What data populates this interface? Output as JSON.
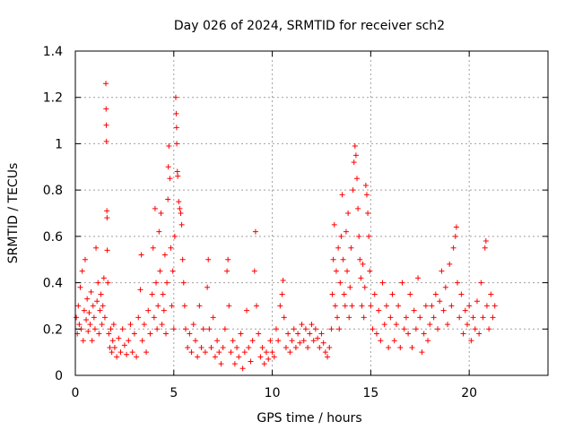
{
  "chart_data": {
    "type": "scatter",
    "title": "Day 026 of 2024, SRMTID for receiver sch2",
    "xlabel": "GPS time / hours",
    "ylabel": "SRMTID / TECUs",
    "xlim": [
      0,
      24
    ],
    "ylim": [
      0,
      1.4
    ],
    "x_ticks": [
      0,
      5,
      10,
      15,
      20
    ],
    "x_tick_labels": [
      "0",
      "5",
      "10",
      "15",
      "20"
    ],
    "y_ticks": [
      0,
      0.2,
      0.4,
      0.6,
      0.8,
      1.0,
      1.2,
      1.4
    ],
    "y_tick_labels": [
      "0",
      "0.2",
      "0.4",
      "0.6",
      "0.8",
      "1",
      "1.2",
      "1.4"
    ],
    "grid": true,
    "marker": "plus",
    "series": [
      {
        "name": "SRMTID",
        "color": "#ff0000",
        "points": [
          [
            0.05,
            0.25
          ],
          [
            0.1,
            0.18
          ],
          [
            0.15,
            0.3
          ],
          [
            0.2,
            0.22
          ],
          [
            0.25,
            0.38
          ],
          [
            0.3,
            0.2
          ],
          [
            0.35,
            0.45
          ],
          [
            0.4,
            0.15
          ],
          [
            0.45,
            0.28
          ],
          [
            0.5,
            0.5
          ],
          [
            0.55,
            0.24
          ],
          [
            0.6,
            0.33
          ],
          [
            0.65,
            0.19
          ],
          [
            0.7,
            0.27
          ],
          [
            0.75,
            0.22
          ],
          [
            0.8,
            0.36
          ],
          [
            0.85,
            0.15
          ],
          [
            0.9,
            0.3
          ],
          [
            0.95,
            0.25
          ],
          [
            1.0,
            0.2
          ],
          [
            1.05,
            0.55
          ],
          [
            1.1,
            0.32
          ],
          [
            1.15,
            0.4
          ],
          [
            1.2,
            0.18
          ],
          [
            1.25,
            0.28
          ],
          [
            1.3,
            0.35
          ],
          [
            1.35,
            0.22
          ],
          [
            1.4,
            0.3
          ],
          [
            1.45,
            0.42
          ],
          [
            1.5,
            0.25
          ],
          [
            1.55,
            1.26
          ],
          [
            1.56,
            1.15
          ],
          [
            1.57,
            1.08
          ],
          [
            1.58,
            1.01
          ],
          [
            1.6,
            0.71
          ],
          [
            1.61,
            0.68
          ],
          [
            1.62,
            0.54
          ],
          [
            1.65,
            0.4
          ],
          [
            1.7,
            0.18
          ],
          [
            1.75,
            0.12
          ],
          [
            1.8,
            0.2
          ],
          [
            1.85,
            0.1
          ],
          [
            1.9,
            0.15
          ],
          [
            1.95,
            0.22
          ],
          [
            2.0,
            0.12
          ],
          [
            2.1,
            0.08
          ],
          [
            2.2,
            0.16
          ],
          [
            2.3,
            0.1
          ],
          [
            2.4,
            0.2
          ],
          [
            2.5,
            0.13
          ],
          [
            2.6,
            0.09
          ],
          [
            2.7,
            0.15
          ],
          [
            2.8,
            0.22
          ],
          [
            2.9,
            0.1
          ],
          [
            3.0,
            0.18
          ],
          [
            3.1,
            0.08
          ],
          [
            3.2,
            0.25
          ],
          [
            3.3,
            0.37
          ],
          [
            3.35,
            0.52
          ],
          [
            3.4,
            0.15
          ],
          [
            3.5,
            0.22
          ],
          [
            3.6,
            0.1
          ],
          [
            3.7,
            0.28
          ],
          [
            3.8,
            0.18
          ],
          [
            3.9,
            0.35
          ],
          [
            3.95,
            0.55
          ],
          [
            4.0,
            0.25
          ],
          [
            4.05,
            0.72
          ],
          [
            4.1,
            0.4
          ],
          [
            4.15,
            0.2
          ],
          [
            4.2,
            0.3
          ],
          [
            4.25,
            0.62
          ],
          [
            4.3,
            0.45
          ],
          [
            4.35,
            0.7
          ],
          [
            4.4,
            0.22
          ],
          [
            4.45,
            0.35
          ],
          [
            4.5,
            0.28
          ],
          [
            4.55,
            0.52
          ],
          [
            4.6,
            0.18
          ],
          [
            4.65,
            0.4
          ],
          [
            4.7,
            0.76
          ],
          [
            4.72,
            0.9
          ],
          [
            4.75,
            0.99
          ],
          [
            4.8,
            0.85
          ],
          [
            4.85,
            0.55
          ],
          [
            4.9,
            0.3
          ],
          [
            4.95,
            0.45
          ],
          [
            5.0,
            0.2
          ],
          [
            5.05,
            0.6
          ],
          [
            5.1,
            1.2
          ],
          [
            5.12,
            1.13
          ],
          [
            5.14,
            1.07
          ],
          [
            5.15,
            1.0
          ],
          [
            5.18,
            0.88
          ],
          [
            5.2,
            0.86
          ],
          [
            5.25,
            0.75
          ],
          [
            5.3,
            0.72
          ],
          [
            5.35,
            0.7
          ],
          [
            5.4,
            0.65
          ],
          [
            5.45,
            0.5
          ],
          [
            5.5,
            0.4
          ],
          [
            5.55,
            0.3
          ],
          [
            5.6,
            0.2
          ],
          [
            5.7,
            0.12
          ],
          [
            5.8,
            0.18
          ],
          [
            5.9,
            0.1
          ],
          [
            6.0,
            0.22
          ],
          [
            6.1,
            0.15
          ],
          [
            6.2,
            0.08
          ],
          [
            6.3,
            0.3
          ],
          [
            6.4,
            0.12
          ],
          [
            6.5,
            0.2
          ],
          [
            6.6,
            0.1
          ],
          [
            6.7,
            0.38
          ],
          [
            6.75,
            0.5
          ],
          [
            6.8,
            0.2
          ],
          [
            6.9,
            0.12
          ],
          [
            7.0,
            0.25
          ],
          [
            7.1,
            0.08
          ],
          [
            7.2,
            0.15
          ],
          [
            7.3,
            0.1
          ],
          [
            7.4,
            0.05
          ],
          [
            7.5,
            0.12
          ],
          [
            7.6,
            0.2
          ],
          [
            7.7,
            0.45
          ],
          [
            7.75,
            0.5
          ],
          [
            7.8,
            0.3
          ],
          [
            7.9,
            0.1
          ],
          [
            8.0,
            0.15
          ],
          [
            8.1,
            0.05
          ],
          [
            8.2,
            0.12
          ],
          [
            8.3,
            0.08
          ],
          [
            8.4,
            0.18
          ],
          [
            8.5,
            0.03
          ],
          [
            8.6,
            0.1
          ],
          [
            8.7,
            0.28
          ],
          [
            8.8,
            0.12
          ],
          [
            8.9,
            0.06
          ],
          [
            9.0,
            0.15
          ],
          [
            9.1,
            0.45
          ],
          [
            9.15,
            0.62
          ],
          [
            9.2,
            0.3
          ],
          [
            9.3,
            0.18
          ],
          [
            9.4,
            0.08
          ],
          [
            9.5,
            0.12
          ],
          [
            9.6,
            0.05
          ],
          [
            9.7,
            0.1
          ],
          [
            9.8,
            0.07
          ],
          [
            9.9,
            0.15
          ],
          [
            10.0,
            0.1
          ],
          [
            10.1,
            0.08
          ],
          [
            10.2,
            0.2
          ],
          [
            10.3,
            0.15
          ],
          [
            10.4,
            0.3
          ],
          [
            10.5,
            0.35
          ],
          [
            10.55,
            0.41
          ],
          [
            10.6,
            0.25
          ],
          [
            10.7,
            0.12
          ],
          [
            10.8,
            0.18
          ],
          [
            10.9,
            0.1
          ],
          [
            11.0,
            0.15
          ],
          [
            11.1,
            0.2
          ],
          [
            11.2,
            0.12
          ],
          [
            11.3,
            0.18
          ],
          [
            11.4,
            0.14
          ],
          [
            11.5,
            0.22
          ],
          [
            11.6,
            0.15
          ],
          [
            11.7,
            0.2
          ],
          [
            11.8,
            0.12
          ],
          [
            11.9,
            0.18
          ],
          [
            12.0,
            0.22
          ],
          [
            12.1,
            0.15
          ],
          [
            12.2,
            0.2
          ],
          [
            12.3,
            0.16
          ],
          [
            12.4,
            0.12
          ],
          [
            12.5,
            0.18
          ],
          [
            12.6,
            0.14
          ],
          [
            12.7,
            0.1
          ],
          [
            12.8,
            0.08
          ],
          [
            12.9,
            0.12
          ],
          [
            13.0,
            0.2
          ],
          [
            13.05,
            0.35
          ],
          [
            13.1,
            0.5
          ],
          [
            13.15,
            0.65
          ],
          [
            13.2,
            0.3
          ],
          [
            13.25,
            0.45
          ],
          [
            13.3,
            0.25
          ],
          [
            13.35,
            0.55
          ],
          [
            13.4,
            0.2
          ],
          [
            13.45,
            0.4
          ],
          [
            13.5,
            0.6
          ],
          [
            13.55,
            0.78
          ],
          [
            13.6,
            0.5
          ],
          [
            13.65,
            0.35
          ],
          [
            13.7,
            0.3
          ],
          [
            13.75,
            0.62
          ],
          [
            13.8,
            0.45
          ],
          [
            13.85,
            0.7
          ],
          [
            13.9,
            0.25
          ],
          [
            13.95,
            0.38
          ],
          [
            14.0,
            0.55
          ],
          [
            14.05,
            0.3
          ],
          [
            14.1,
            0.8
          ],
          [
            14.15,
            0.92
          ],
          [
            14.2,
            0.99
          ],
          [
            14.25,
            0.95
          ],
          [
            14.3,
            0.85
          ],
          [
            14.35,
            0.72
          ],
          [
            14.4,
            0.6
          ],
          [
            14.45,
            0.5
          ],
          [
            14.5,
            0.42
          ],
          [
            14.55,
            0.3
          ],
          [
            14.6,
            0.48
          ],
          [
            14.65,
            0.25
          ],
          [
            14.7,
            0.38
          ],
          [
            14.75,
            0.82
          ],
          [
            14.8,
            0.78
          ],
          [
            14.85,
            0.7
          ],
          [
            14.9,
            0.6
          ],
          [
            14.95,
            0.45
          ],
          [
            15.0,
            0.3
          ],
          [
            15.1,
            0.2
          ],
          [
            15.2,
            0.35
          ],
          [
            15.3,
            0.18
          ],
          [
            15.4,
            0.28
          ],
          [
            15.5,
            0.15
          ],
          [
            15.6,
            0.4
          ],
          [
            15.7,
            0.22
          ],
          [
            15.8,
            0.3
          ],
          [
            15.9,
            0.12
          ],
          [
            16.0,
            0.25
          ],
          [
            16.1,
            0.35
          ],
          [
            16.2,
            0.15
          ],
          [
            16.3,
            0.22
          ],
          [
            16.4,
            0.3
          ],
          [
            16.5,
            0.12
          ],
          [
            16.6,
            0.4
          ],
          [
            16.7,
            0.2
          ],
          [
            16.8,
            0.25
          ],
          [
            16.9,
            0.18
          ],
          [
            17.0,
            0.35
          ],
          [
            17.1,
            0.12
          ],
          [
            17.2,
            0.28
          ],
          [
            17.3,
            0.2
          ],
          [
            17.4,
            0.42
          ],
          [
            17.5,
            0.25
          ],
          [
            17.6,
            0.1
          ],
          [
            17.7,
            0.18
          ],
          [
            17.8,
            0.3
          ],
          [
            17.9,
            0.15
          ],
          [
            18.0,
            0.22
          ],
          [
            18.1,
            0.3
          ],
          [
            18.2,
            0.25
          ],
          [
            18.3,
            0.35
          ],
          [
            18.4,
            0.2
          ],
          [
            18.5,
            0.32
          ],
          [
            18.6,
            0.45
          ],
          [
            18.7,
            0.28
          ],
          [
            18.8,
            0.38
          ],
          [
            18.9,
            0.22
          ],
          [
            19.0,
            0.48
          ],
          [
            19.1,
            0.3
          ],
          [
            19.2,
            0.55
          ],
          [
            19.3,
            0.6
          ],
          [
            19.35,
            0.64
          ],
          [
            19.4,
            0.4
          ],
          [
            19.5,
            0.25
          ],
          [
            19.6,
            0.35
          ],
          [
            19.7,
            0.18
          ],
          [
            19.8,
            0.28
          ],
          [
            19.9,
            0.22
          ],
          [
            20.0,
            0.3
          ],
          [
            20.1,
            0.15
          ],
          [
            20.2,
            0.25
          ],
          [
            20.3,
            0.2
          ],
          [
            20.4,
            0.32
          ],
          [
            20.5,
            0.18
          ],
          [
            20.6,
            0.4
          ],
          [
            20.7,
            0.25
          ],
          [
            20.8,
            0.55
          ],
          [
            20.85,
            0.58
          ],
          [
            20.9,
            0.3
          ],
          [
            21.0,
            0.2
          ],
          [
            21.1,
            0.35
          ],
          [
            21.2,
            0.25
          ],
          [
            21.3,
            0.3
          ]
        ]
      }
    ]
  }
}
